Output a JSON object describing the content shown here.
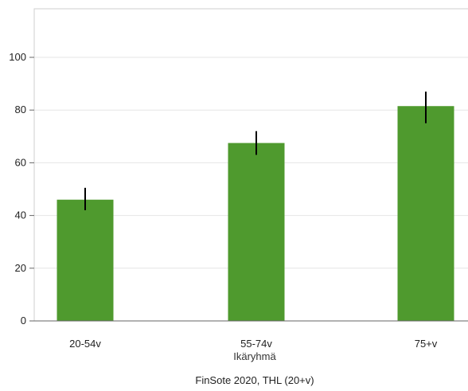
{
  "chart_data": {
    "type": "bar",
    "categories": [
      "20-54v",
      "55-74v",
      "75+v"
    ],
    "values": [
      46,
      67.5,
      81.5
    ],
    "error_low": [
      42,
      63,
      75
    ],
    "error_high": [
      50.5,
      72,
      87
    ],
    "xlabel": "Ikäryhmä",
    "ylabel": "",
    "ylim": [
      0,
      100
    ],
    "yticks": [
      0,
      20,
      40,
      60,
      80,
      100
    ],
    "grid": true,
    "source": "FinSote 2020, THL (20+v)",
    "colors": {
      "bar": "#4f9a2e",
      "error": "#000000",
      "grid": "#e6e6e6",
      "axis": "#666666"
    }
  }
}
